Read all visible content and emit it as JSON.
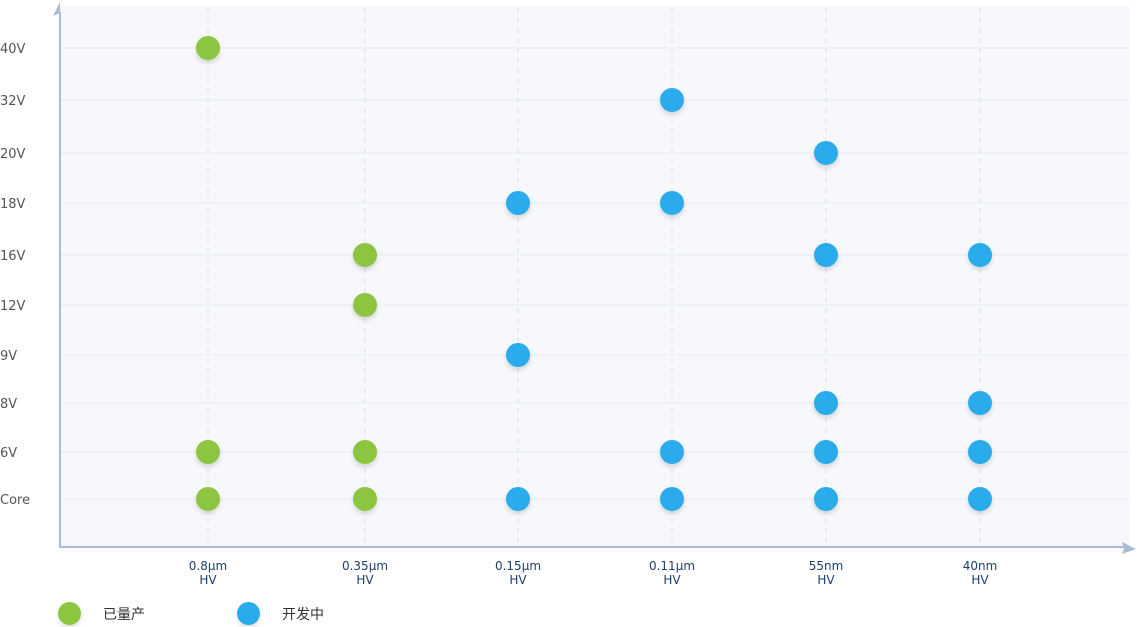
{
  "chart_data": {
    "type": "scatter",
    "title": "",
    "xlabel": "",
    "ylabel": "",
    "categories": [
      [
        "0.8µm",
        "HV"
      ],
      [
        "0.35µm",
        "HV"
      ],
      [
        "0.15µm",
        "HV"
      ],
      [
        "0.11µm",
        "HV"
      ],
      [
        "55nm",
        "HV"
      ],
      [
        "40nm",
        "HV"
      ]
    ],
    "y_categories": [
      "Core",
      "6V",
      "8V",
      "9V",
      "12V",
      "16V",
      "18V",
      "20V",
      "32V",
      "40V"
    ],
    "grid": true,
    "legend_position": "bottom-left",
    "series": [
      {
        "name": "已量产",
        "color": "#8cc63f",
        "points": [
          {
            "x": "0.8µm",
            "y": "40V"
          },
          {
            "x": "0.8µm",
            "y": "6V"
          },
          {
            "x": "0.8µm",
            "y": "Core"
          },
          {
            "x": "0.35µm",
            "y": "16V"
          },
          {
            "x": "0.35µm",
            "y": "12V"
          },
          {
            "x": "0.35µm",
            "y": "6V"
          },
          {
            "x": "0.35µm",
            "y": "Core"
          }
        ]
      },
      {
        "name": "开发中",
        "color": "#29abec",
        "points": [
          {
            "x": "0.15µm",
            "y": "18V"
          },
          {
            "x": "0.15µm",
            "y": "9V"
          },
          {
            "x": "0.15µm",
            "y": "Core"
          },
          {
            "x": "0.11µm",
            "y": "32V"
          },
          {
            "x": "0.11µm",
            "y": "18V"
          },
          {
            "x": "0.11µm",
            "y": "6V"
          },
          {
            "x": "0.11µm",
            "y": "Core"
          },
          {
            "x": "55nm",
            "y": "20V"
          },
          {
            "x": "55nm",
            "y": "16V"
          },
          {
            "x": "55nm",
            "y": "8V"
          },
          {
            "x": "55nm",
            "y": "6V"
          },
          {
            "x": "55nm",
            "y": "Core"
          },
          {
            "x": "40nm",
            "y": "16V"
          },
          {
            "x": "40nm",
            "y": "8V"
          },
          {
            "x": "40nm",
            "y": "6V"
          },
          {
            "x": "40nm",
            "y": "Core"
          }
        ]
      }
    ]
  },
  "colors": {
    "plot_background": "#f6f8fc",
    "axis": "#a9bcd4",
    "gridline": "#e6ebf2",
    "vertical_dash": "#d9dfe8"
  }
}
